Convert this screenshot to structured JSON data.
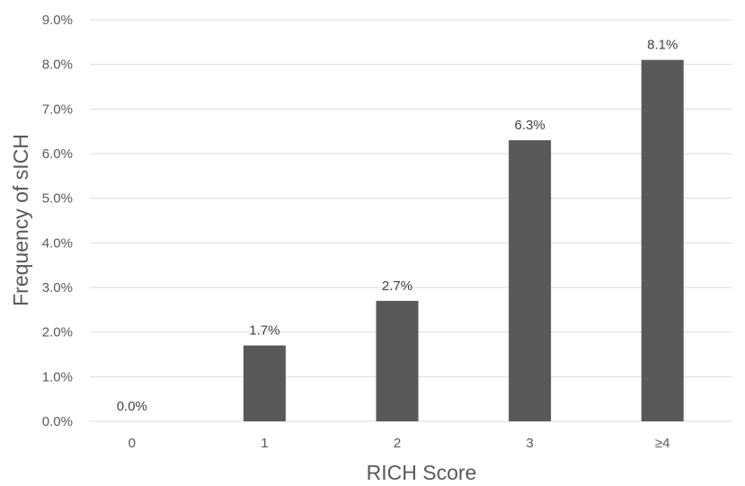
{
  "chart_data": {
    "type": "bar",
    "xlabel": "RICH Score",
    "ylabel": "Frequency of sICH",
    "categories": [
      "0",
      "1",
      "2",
      "3",
      "≥4"
    ],
    "values": [
      0.0,
      1.7,
      2.7,
      6.3,
      8.1
    ],
    "data_labels": [
      "0.0%",
      "1.7%",
      "2.7%",
      "6.3%",
      "8.1%"
    ],
    "ylim": [
      0,
      9
    ],
    "y_ticks": [
      0,
      1,
      2,
      3,
      4,
      5,
      6,
      7,
      8,
      9
    ],
    "y_tick_labels": [
      "0.0%",
      "1.0%",
      "2.0%",
      "3.0%",
      "4.0%",
      "5.0%",
      "6.0%",
      "7.0%",
      "8.0%",
      "9.0%"
    ],
    "grid": true,
    "legend": "none",
    "colors": {
      "bar": "#595959",
      "grid": "#d9d9d9",
      "axis_text": "#595959",
      "label_text": "#404040"
    }
  }
}
